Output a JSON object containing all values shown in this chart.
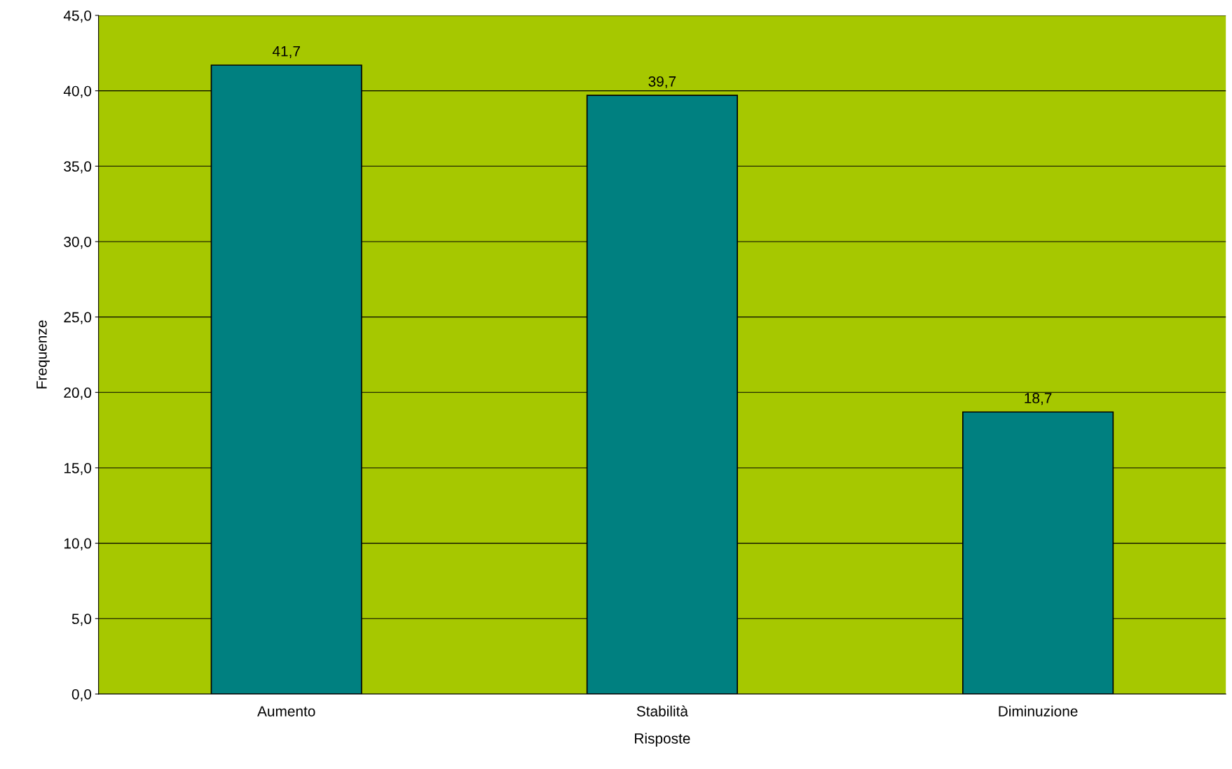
{
  "chart_data": {
    "type": "bar",
    "xlabel": "Risposte",
    "ylabel": "Frequenze",
    "categories": [
      "Aumento",
      "Stabilità",
      "Diminuzione"
    ],
    "values": [
      41.7,
      39.7,
      18.7
    ],
    "value_labels": [
      "41,7",
      "39,7",
      "18,7"
    ],
    "color": "#008080",
    "ylim": [
      0,
      45
    ],
    "yticks": [
      {
        "value": 0,
        "label": "0,0"
      },
      {
        "value": 5,
        "label": "5,0"
      },
      {
        "value": 10,
        "label": "10,0"
      },
      {
        "value": 15,
        "label": "15,0"
      },
      {
        "value": 20,
        "label": "20,0"
      },
      {
        "value": 25,
        "label": "25,0"
      },
      {
        "value": 30,
        "label": "30,0"
      },
      {
        "value": 35,
        "label": "35,0"
      },
      {
        "value": 40,
        "label": "40,0"
      },
      {
        "value": 45,
        "label": "45,0"
      }
    ],
    "grid": "y",
    "legend": false
  }
}
